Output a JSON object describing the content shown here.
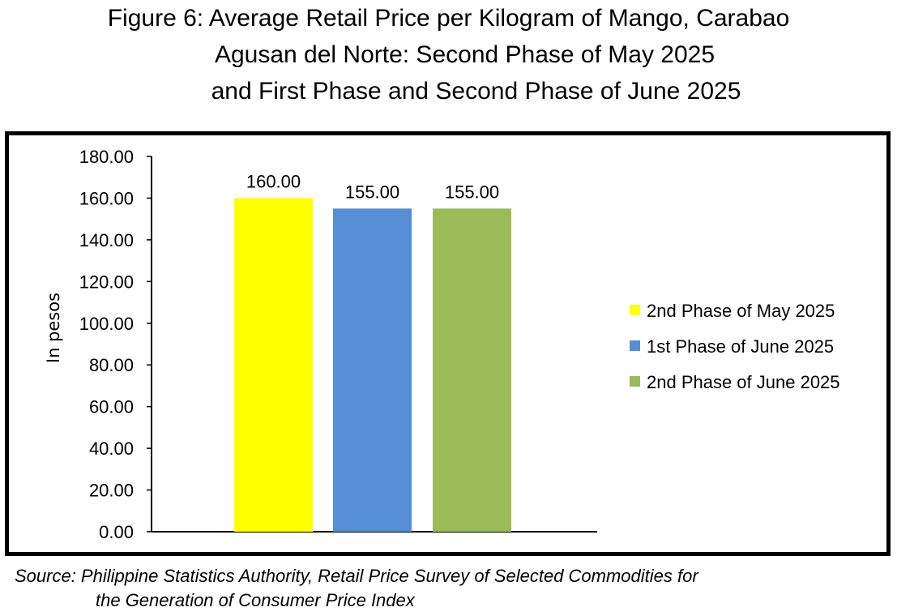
{
  "title": {
    "line1": "Figure 6: Average Retail Price per Kilogram of Mango, Carabao",
    "line2": "Agusan del Norte: Second Phase of May 2025",
    "line3": "and First Phase and Second Phase of June 2025"
  },
  "source": {
    "line1": "Source: Philippine Statistics Authority, Retail Price Survey of Selected Commodities for",
    "line2": "the Generation of Consumer Price Index"
  },
  "chart_data": {
    "type": "bar",
    "ylabel": "In pesos",
    "ylim": [
      0,
      180
    ],
    "ytick_step": 20,
    "ytick_labels": [
      "0.00",
      "20.00",
      "40.00",
      "60.00",
      "80.00",
      "100.00",
      "120.00",
      "140.00",
      "160.00",
      "180.00"
    ],
    "grid": false,
    "legend_position": "right",
    "series": [
      {
        "name": "2nd Phase of May 2025",
        "value": 160.0,
        "label": "160.00",
        "color": "#FFFF00"
      },
      {
        "name": "1st Phase of June 2025",
        "value": 155.0,
        "label": "155.00",
        "color": "#558ED5"
      },
      {
        "name": "2nd Phase of June 2025",
        "value": 155.0,
        "label": "155.00",
        "color": "#9BBB59"
      }
    ]
  }
}
